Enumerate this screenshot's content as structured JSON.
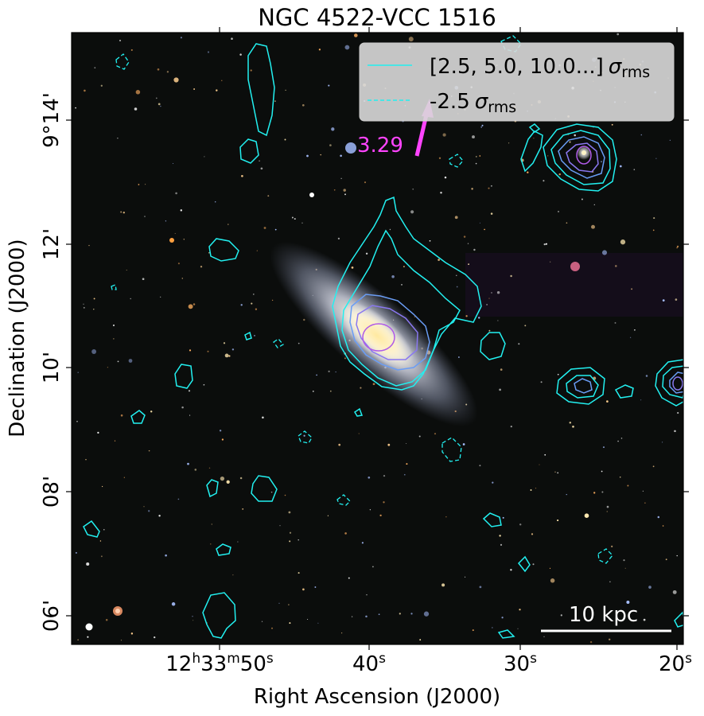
{
  "title": "NGC 4522-VCC 1516",
  "xlabel": "Right Ascension (J2000)",
  "ylabel": "Declination (J2000)",
  "ra_ticks": [
    {
      "h": "12",
      "m": "33",
      "s": "50",
      "label": "12h33m50s"
    },
    {
      "s": "40",
      "label": "40s"
    },
    {
      "s": "30",
      "label": "30s"
    },
    {
      "s": "20",
      "label": "20s"
    }
  ],
  "dec_ticks": [
    {
      "label": "9°14'",
      "deg": "9",
      "min": "14'"
    },
    {
      "label": "12'"
    },
    {
      "label": "10'"
    },
    {
      "label": "08'"
    },
    {
      "label": "06'"
    }
  ],
  "legend": {
    "entries": [
      {
        "text": "[2.5, 5.0, 10.0...]",
        "sym": "σ",
        "sub": "rms",
        "style": "solid"
      },
      {
        "text": "-2.5",
        "sym": "σ",
        "sub": "rms",
        "style": "dashed"
      }
    ],
    "placement": "top-right"
  },
  "annotation": {
    "text": "3.29",
    "color": "#ff44ff"
  },
  "scalebar": {
    "text": "10 kpc"
  },
  "colors": {
    "contour_outer": "#22f0f0",
    "contour_mid": "#6a9df5",
    "contour_inner": "#b05ae8",
    "arrow": "#ff44ff",
    "sky": "#0b0d0c"
  }
}
